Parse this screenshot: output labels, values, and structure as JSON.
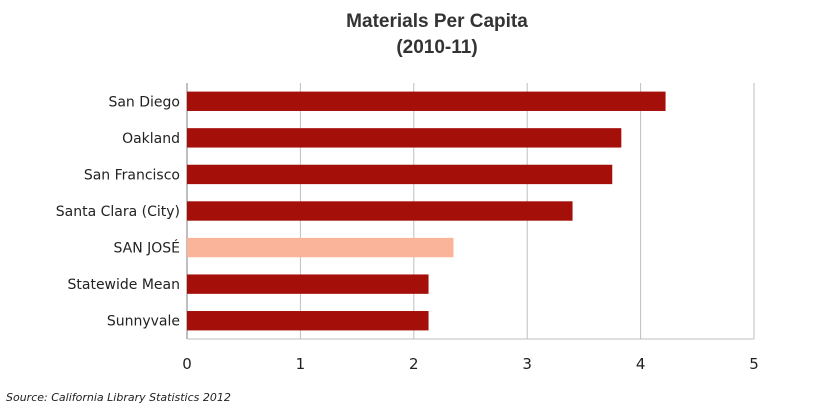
{
  "chart_data": {
    "type": "bar",
    "orientation": "horizontal",
    "title": "Materials Per Capita",
    "subtitle": "(2010-11)",
    "categories": [
      "San Diego",
      "Oakland",
      "San Francisco",
      "Santa Clara (City)",
      "SAN JOSÉ",
      "Statewide Mean",
      "Sunnyvale"
    ],
    "values": [
      4.22,
      3.83,
      3.75,
      3.4,
      2.35,
      2.13,
      2.13
    ],
    "xlim": [
      0,
      5
    ],
    "xticks": [
      "0",
      "1",
      "2",
      "3",
      "4",
      "5"
    ],
    "grid": "vertical",
    "legend": "none",
    "colors": {
      "default": "#a50f0a",
      "highlight": "#f9b49a",
      "highlight_category": "SAN JOSÉ"
    }
  },
  "source": "Source: California Library Statistics 2012"
}
